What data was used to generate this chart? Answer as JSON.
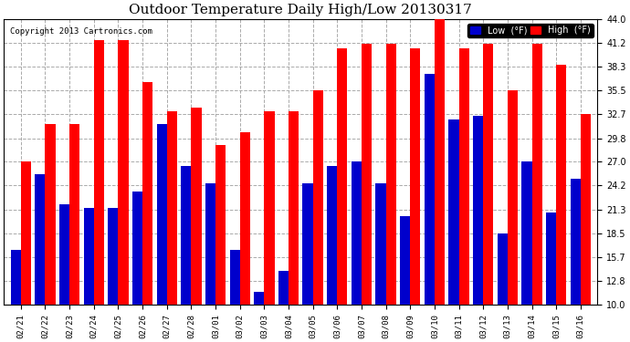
{
  "title": "Outdoor Temperature Daily High/Low 20130317",
  "copyright": "Copyright 2013 Cartronics.com",
  "yticks": [
    10.0,
    12.8,
    15.7,
    18.5,
    21.3,
    24.2,
    27.0,
    29.8,
    32.7,
    35.5,
    38.3,
    41.2,
    44.0
  ],
  "ymin": 10.0,
  "ymax": 44.0,
  "dates": [
    "02/21",
    "02/22",
    "02/23",
    "02/24",
    "02/25",
    "02/26",
    "02/27",
    "02/28",
    "03/01",
    "03/02",
    "03/03",
    "03/04",
    "03/05",
    "03/06",
    "03/07",
    "03/08",
    "03/09",
    "03/10",
    "03/11",
    "03/12",
    "03/13",
    "03/14",
    "03/15",
    "03/16"
  ],
  "high": [
    27.0,
    31.5,
    31.5,
    41.5,
    41.5,
    36.5,
    33.0,
    33.5,
    29.0,
    30.5,
    33.0,
    33.0,
    35.5,
    40.5,
    41.0,
    41.0,
    40.5,
    44.5,
    40.5,
    41.0,
    35.5,
    41.0,
    38.5,
    32.7
  ],
  "low": [
    16.5,
    25.5,
    22.0,
    21.5,
    21.5,
    23.5,
    31.5,
    26.5,
    24.5,
    16.5,
    11.5,
    14.0,
    24.5,
    26.5,
    27.0,
    24.5,
    20.5,
    37.5,
    32.0,
    32.5,
    18.5,
    27.0,
    21.0,
    25.0
  ],
  "high_color": "#ff0000",
  "low_color": "#0000cc",
  "bg_color": "#ffffff",
  "grid_color": "#aaaaaa",
  "title_fontsize": 11,
  "legend_low_label": "Low  (°F)",
  "legend_high_label": "High  (°F)"
}
